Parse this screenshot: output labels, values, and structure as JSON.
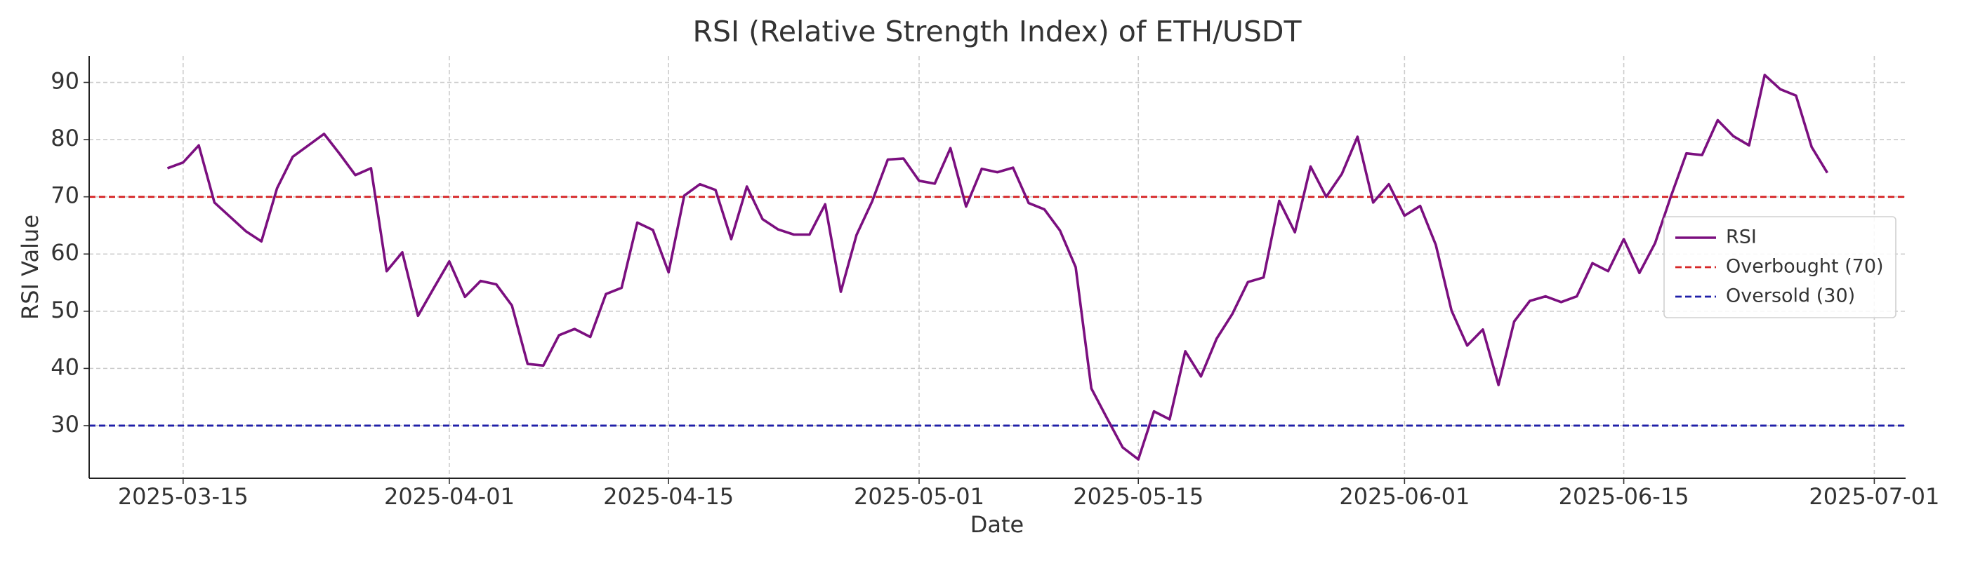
{
  "chart_data": {
    "type": "line",
    "title": "RSI (Relative Strength Index) of ETH/USDT",
    "x_label": "Date",
    "y_label": "RSI Value",
    "x": [
      "2025-03-14",
      "2025-03-15",
      "2025-03-16",
      "2025-03-17",
      "2025-03-18",
      "2025-03-19",
      "2025-03-20",
      "2025-03-21",
      "2025-03-22",
      "2025-03-23",
      "2025-03-24",
      "2025-03-25",
      "2025-03-26",
      "2025-03-27",
      "2025-03-28",
      "2025-03-29",
      "2025-03-30",
      "2025-03-31",
      "2025-04-01",
      "2025-04-02",
      "2025-04-03",
      "2025-04-04",
      "2025-04-05",
      "2025-04-06",
      "2025-04-07",
      "2025-04-08",
      "2025-04-09",
      "2025-04-10",
      "2025-04-11",
      "2025-04-12",
      "2025-04-13",
      "2025-04-14",
      "2025-04-15",
      "2025-04-16",
      "2025-04-17",
      "2025-04-18",
      "2025-04-19",
      "2025-04-20",
      "2025-04-21",
      "2025-04-22",
      "2025-04-23",
      "2025-04-24",
      "2025-04-25",
      "2025-04-26",
      "2025-04-27",
      "2025-04-28",
      "2025-04-29",
      "2025-04-30",
      "2025-05-01",
      "2025-05-02",
      "2025-05-03",
      "2025-05-04",
      "2025-05-05",
      "2025-05-06",
      "2025-05-07",
      "2025-05-08",
      "2025-05-09",
      "2025-05-10",
      "2025-05-11",
      "2025-05-12",
      "2025-05-13",
      "2025-05-14",
      "2025-05-15",
      "2025-05-16",
      "2025-05-17",
      "2025-05-18",
      "2025-05-19",
      "2025-05-20",
      "2025-05-21",
      "2025-05-22",
      "2025-05-23",
      "2025-05-24",
      "2025-05-25",
      "2025-05-26",
      "2025-05-27",
      "2025-05-28",
      "2025-05-29",
      "2025-05-30",
      "2025-05-31",
      "2025-06-01",
      "2025-06-02",
      "2025-06-03",
      "2025-06-04",
      "2025-06-05",
      "2025-06-06",
      "2025-06-07",
      "2025-06-08",
      "2025-06-09",
      "2025-06-10",
      "2025-06-11",
      "2025-06-12",
      "2025-06-13",
      "2025-06-14",
      "2025-06-15",
      "2025-06-16",
      "2025-06-17",
      "2025-06-18",
      "2025-06-19",
      "2025-06-20",
      "2025-06-21",
      "2025-06-22",
      "2025-06-23",
      "2025-06-24",
      "2025-06-25",
      "2025-06-26",
      "2025-06-27",
      "2025-06-28"
    ],
    "series": [
      {
        "name": "RSI",
        "color": "#7b0f7f",
        "values": [
          75,
          76,
          79,
          69,
          66.5,
          64,
          62.2,
          71.5,
          77,
          79,
          81,
          77.5,
          73.8,
          75,
          57,
          60.3,
          49.2,
          54,
          58.7,
          52.5,
          55.3,
          54.7,
          51,
          40.8,
          40.5,
          45.8,
          46.9,
          45.5,
          53,
          54.1,
          65.5,
          64.2,
          56.8,
          70.2,
          72.2,
          71.2,
          62.6,
          71.8,
          66.1,
          64.3,
          63.4,
          63.4,
          68.7,
          53.4,
          63.3,
          69.2,
          76.5,
          76.7,
          72.8,
          72.3,
          78.5,
          68.3,
          74.9,
          74.3,
          75.1,
          68.9,
          67.8,
          64.1,
          57.7,
          36.5,
          31.3,
          26.2,
          24.1,
          32.5,
          31.1,
          43,
          38.6,
          45.2,
          49.5,
          55.1,
          55.9,
          69.3,
          63.8,
          75.3,
          70,
          74,
          80.5,
          69,
          72.2,
          66.7,
          68.4,
          61.6,
          50.1,
          44,
          46.8,
          37.1,
          48.2,
          51.8,
          52.6,
          51.6,
          52.6,
          58.4,
          57,
          62.6,
          56.7,
          61.9,
          70,
          77.6,
          77.3,
          83.4,
          80.6,
          79,
          91.3,
          88.8,
          87.7,
          78.7,
          74.2
        ]
      }
    ],
    "hlines": [
      {
        "name": "Overbought (70)",
        "value": 70,
        "color": "#d62728"
      },
      {
        "name": "Oversold (30)",
        "value": 30,
        "color": "#1f1fa8"
      }
    ],
    "xlim": [
      "2025-03-09",
      "2025-07-03"
    ],
    "xticks": [
      "2025-03-15",
      "2025-04-01",
      "2025-04-15",
      "2025-05-01",
      "2025-05-15",
      "2025-06-01",
      "2025-06-15",
      "2025-07-01"
    ],
    "ylim": [
      20.8,
      94.6
    ],
    "yticks": [
      30,
      40,
      50,
      60,
      70,
      80,
      90
    ],
    "grid": true,
    "legend": "center right"
  }
}
